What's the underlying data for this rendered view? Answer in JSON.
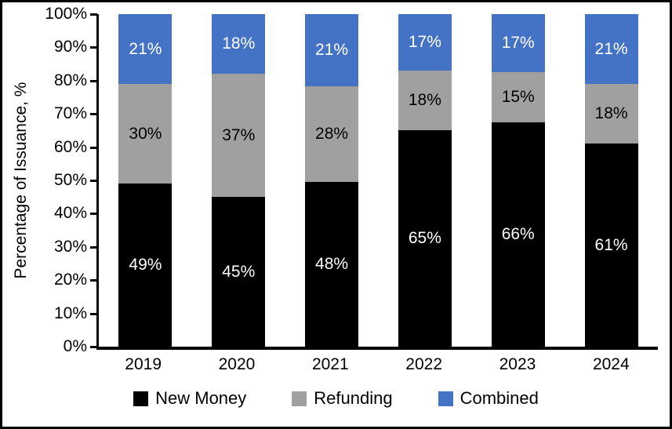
{
  "chart_data": {
    "type": "bar",
    "stacked": true,
    "categories": [
      "2019",
      "2020",
      "2021",
      "2022",
      "2023",
      "2024"
    ],
    "series": [
      {
        "name": "New Money",
        "color": "#000000",
        "label_color": "#FFFFFF",
        "values": [
          49,
          45,
          48,
          65,
          66,
          61
        ]
      },
      {
        "name": "Refunding",
        "color": "#A0A0A0",
        "label_color": "#000000",
        "values": [
          30,
          37,
          28,
          18,
          15,
          18
        ]
      },
      {
        "name": "Combined",
        "color": "#4472C4",
        "label_color": "#FFFFFF",
        "values": [
          21,
          18,
          21,
          17,
          17,
          21
        ]
      }
    ],
    "title": "",
    "xlabel": "",
    "ylabel": "Percentage of Issuance, %",
    "ylim": [
      0,
      100
    ],
    "ytick_step": 10,
    "ytick_labels": [
      "0%",
      "10%",
      "20%",
      "30%",
      "40%",
      "50%",
      "60%",
      "70%",
      "80%",
      "90%",
      "100%"
    ],
    "data_label_suffix": "%",
    "legend_position": "bottom",
    "grid": false
  }
}
